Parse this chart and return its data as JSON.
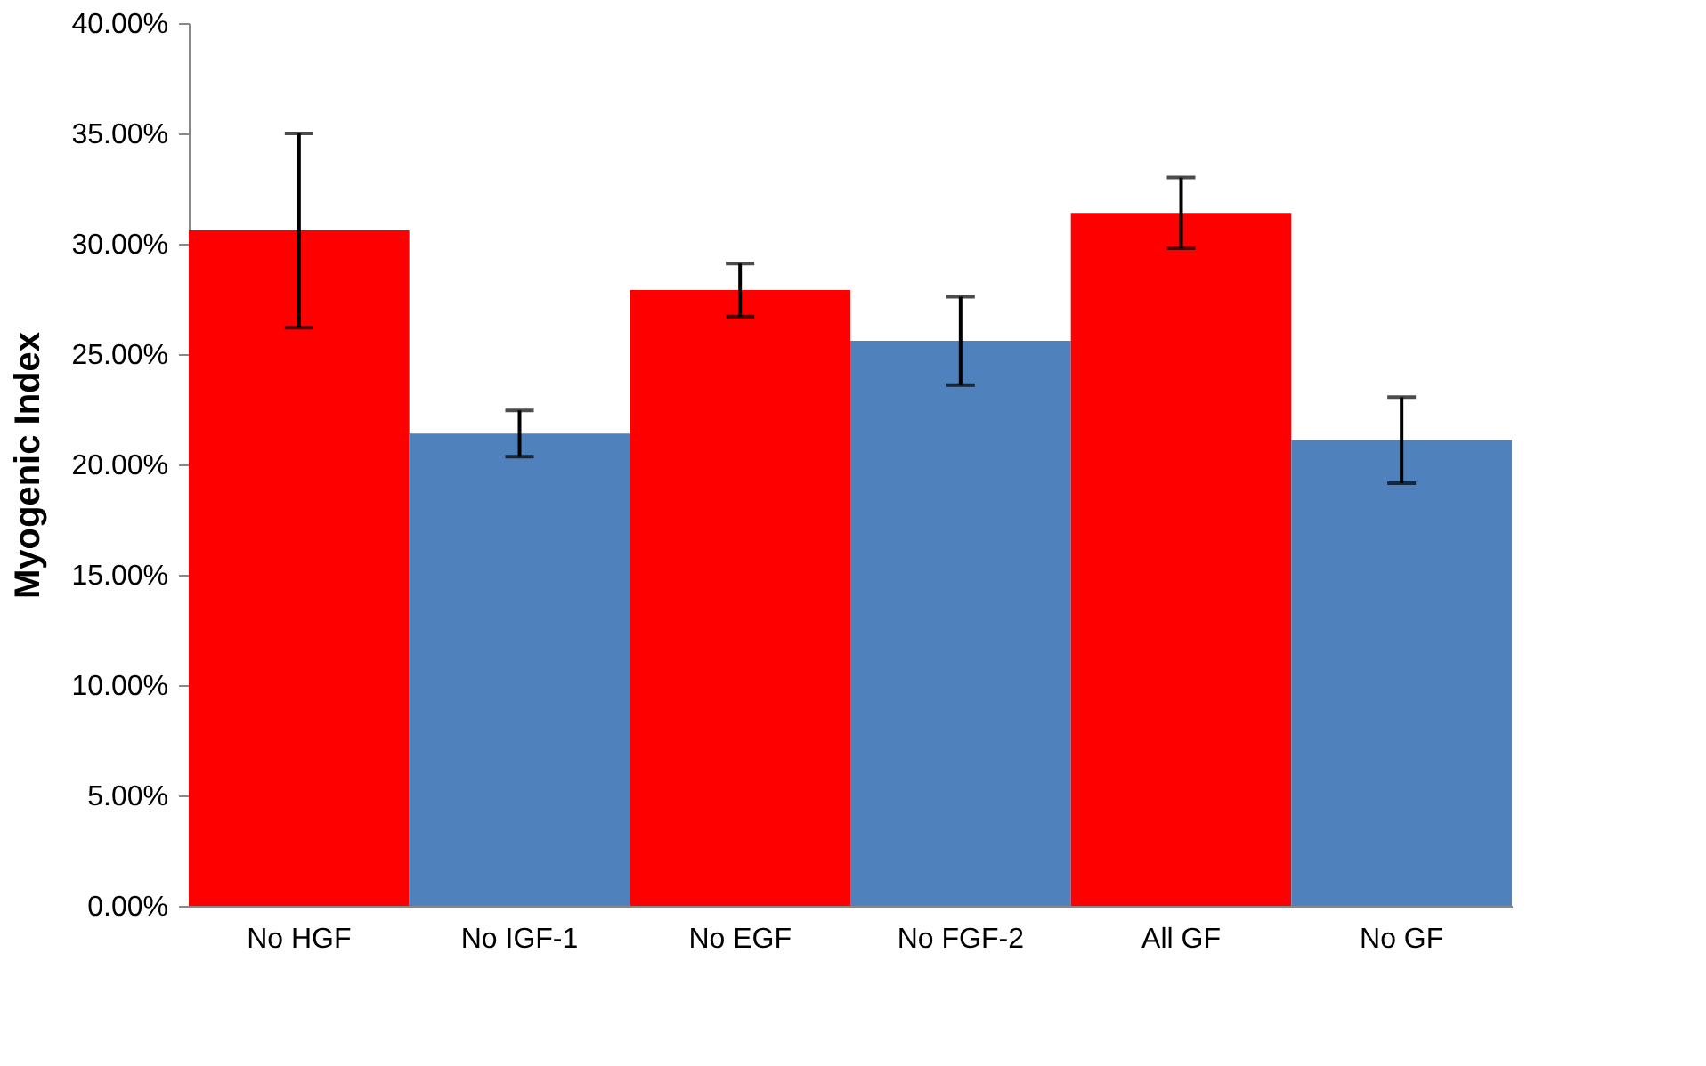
{
  "chart_data": {
    "type": "bar",
    "ylabel": "Myogenic Index",
    "categories": [
      "No HGF",
      "No IGF-1",
      "No EGF",
      "No FGF-2",
      "All GF",
      "No GF"
    ],
    "values": [
      0.306,
      0.214,
      0.279,
      0.256,
      0.314,
      0.211
    ],
    "errors": [
      0.044,
      0.0105,
      0.012,
      0.02,
      0.016,
      0.0195
    ],
    "colors": [
      "#ff0000",
      "#4f81bd",
      "#ff0000",
      "#4f81bd",
      "#ff0000",
      "#4f81bd"
    ],
    "ylim": [
      0,
      0.4
    ],
    "yticks": [
      {
        "value": 0,
        "label": "0.00%"
      },
      {
        "value": 0.05,
        "label": "5.00%"
      },
      {
        "value": 0.1,
        "label": "10.00%"
      },
      {
        "value": 0.15,
        "label": "15.00%"
      },
      {
        "value": 0.2,
        "label": "20.00%"
      },
      {
        "value": 0.25,
        "label": "25.00%"
      },
      {
        "value": 0.3,
        "label": "30.00%"
      },
      {
        "value": 0.35,
        "label": "35.00%"
      },
      {
        "value": 0.4,
        "label": "40.00%"
      }
    ],
    "grid": false
  }
}
